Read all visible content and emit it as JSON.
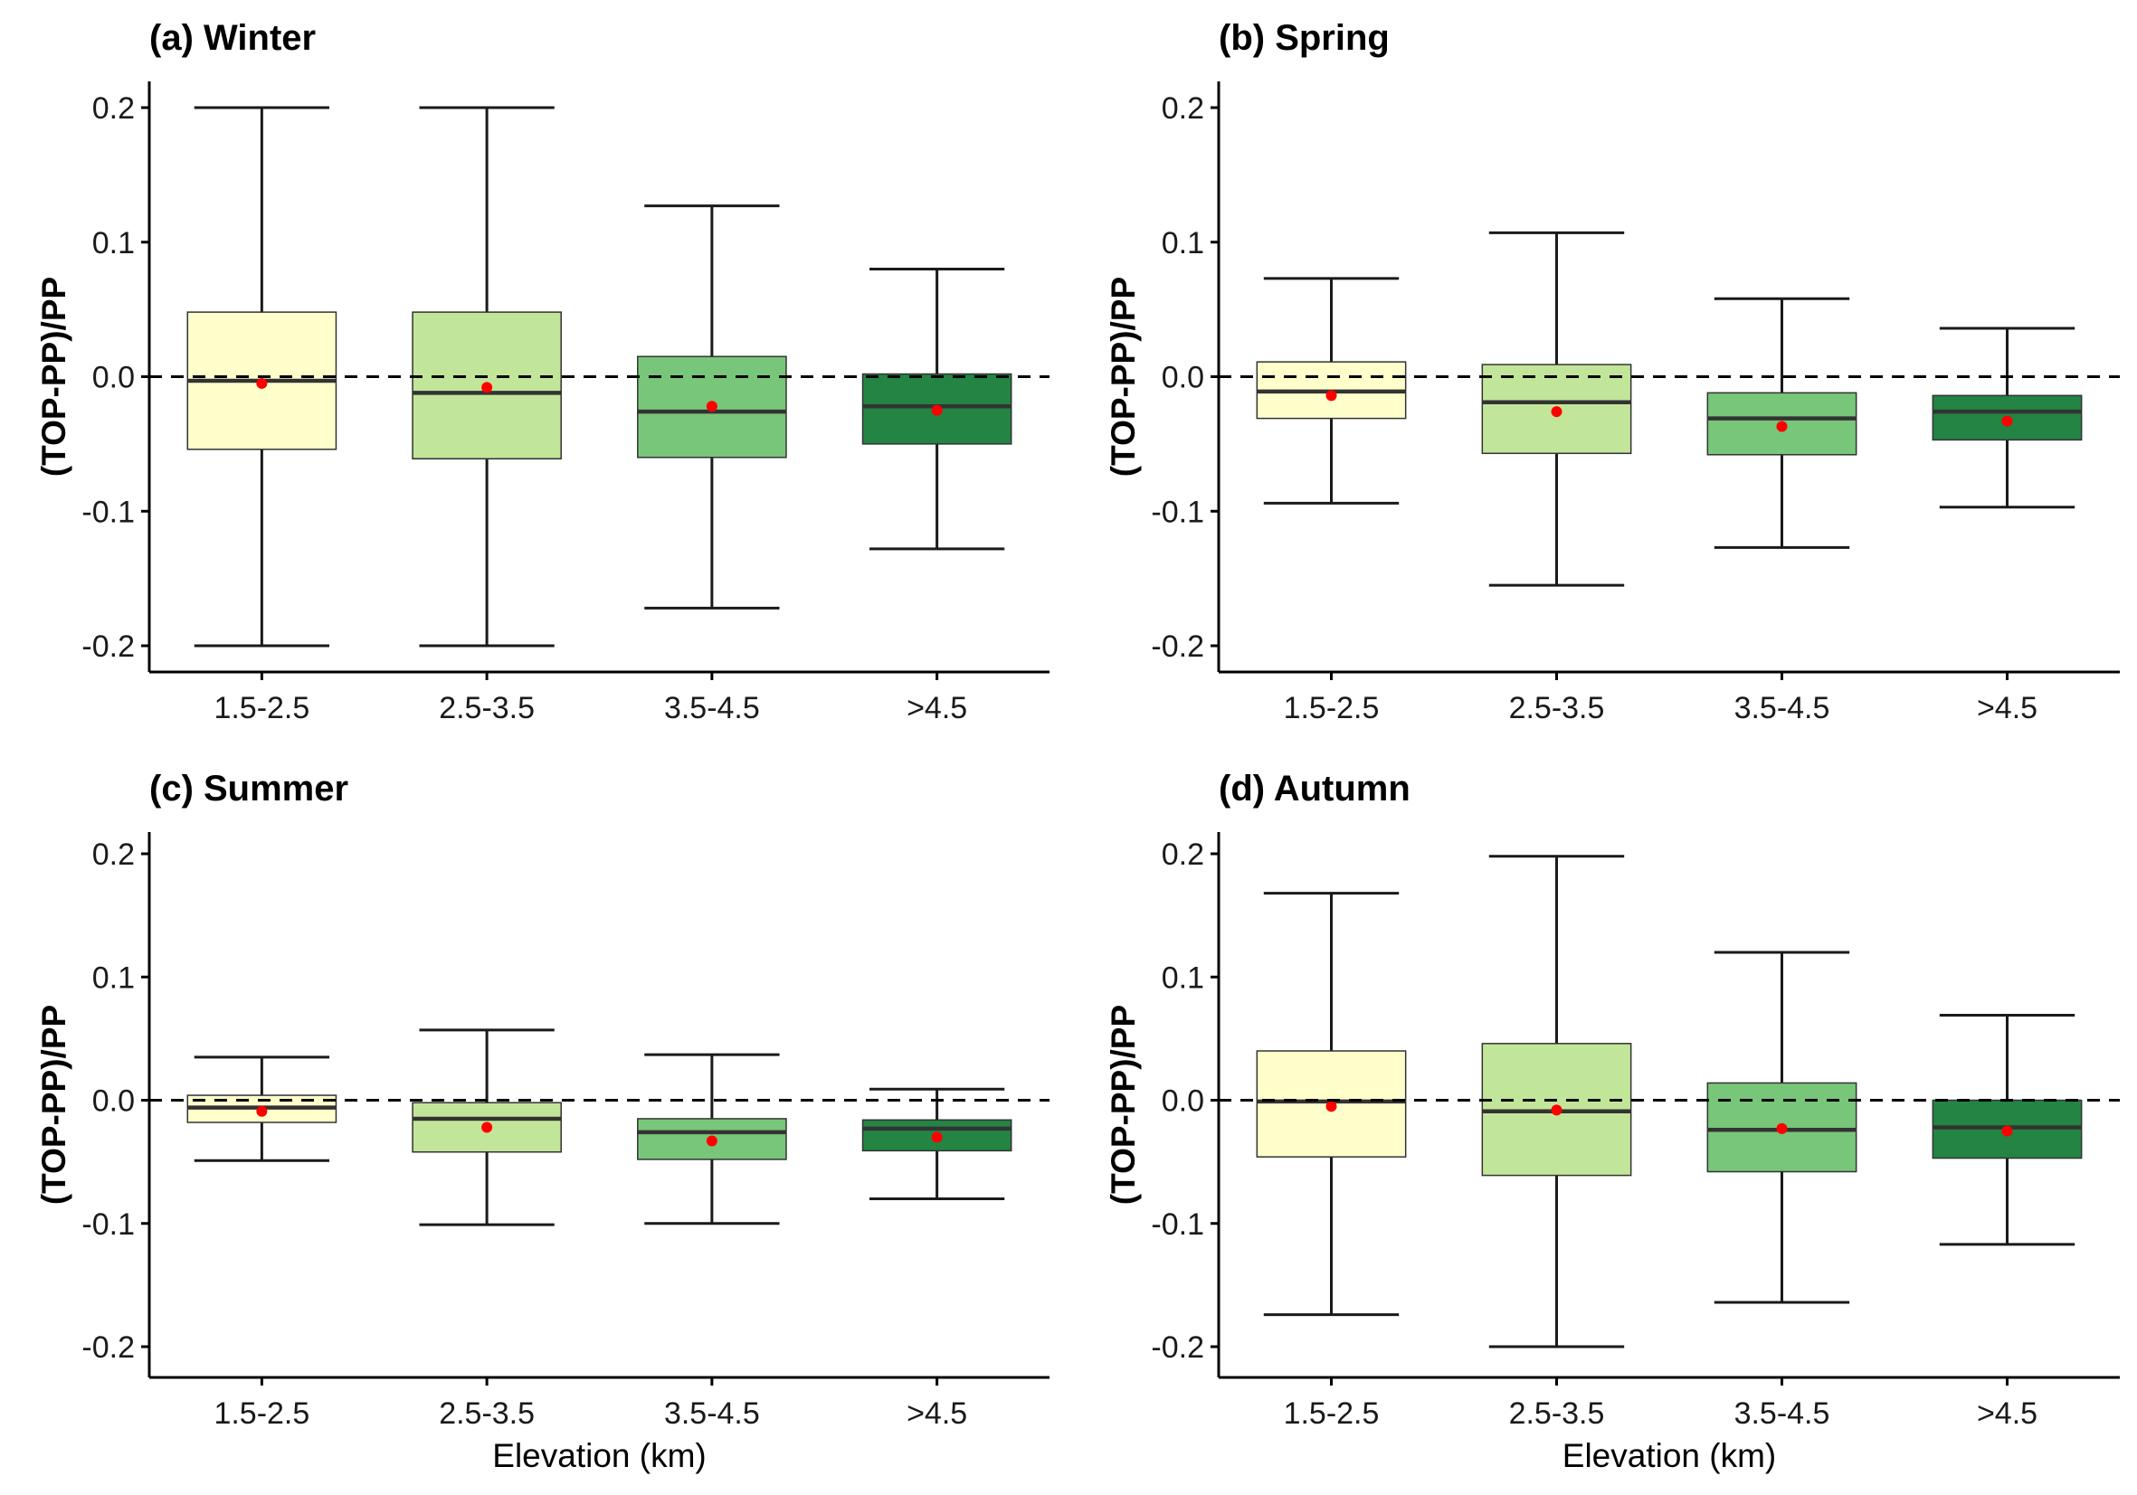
{
  "chart_data": [
    {
      "type": "box",
      "title": "(a) Winter",
      "ylabel": "(TOP-PP)/PP",
      "xlabel": "",
      "ylim": [
        -0.218,
        0.218
      ],
      "yticks": [
        "0.2",
        "0.1",
        "0.0",
        "-0.1",
        "-0.2"
      ],
      "reference_line": 0.0,
      "categories": [
        "1.5-2.5",
        "2.5-3.5",
        "3.5-4.5",
        ">4.5"
      ],
      "boxes": [
        {
          "whisker_low": -0.2,
          "q1": -0.054,
          "median": -0.003,
          "q3": 0.048,
          "whisker_high": 0.2,
          "mean": -0.005
        },
        {
          "whisker_low": -0.2,
          "q1": -0.061,
          "median": -0.012,
          "q3": 0.048,
          "whisker_high": 0.2,
          "mean": -0.008
        },
        {
          "whisker_low": -0.172,
          "q1": -0.06,
          "median": -0.026,
          "q3": 0.015,
          "whisker_high": 0.127,
          "mean": -0.022
        },
        {
          "whisker_low": -0.128,
          "q1": -0.05,
          "median": -0.022,
          "q3": 0.002,
          "whisker_high": 0.08,
          "mean": -0.025
        }
      ]
    },
    {
      "type": "box",
      "title": "(b) Spring",
      "ylabel": "(TOP-PP)/PP",
      "xlabel": "",
      "ylim": [
        -0.218,
        0.218
      ],
      "yticks": [
        "0.2",
        "0.1",
        "0.0",
        "-0.1",
        "-0.2"
      ],
      "reference_line": 0.0,
      "categories": [
        "1.5-2.5",
        "2.5-3.5",
        "3.5-4.5",
        ">4.5"
      ],
      "boxes": [
        {
          "whisker_low": -0.094,
          "q1": -0.031,
          "median": -0.011,
          "q3": 0.011,
          "whisker_high": 0.073,
          "mean": -0.014
        },
        {
          "whisker_low": -0.155,
          "q1": -0.057,
          "median": -0.019,
          "q3": 0.009,
          "whisker_high": 0.107,
          "mean": -0.026
        },
        {
          "whisker_low": -0.127,
          "q1": -0.058,
          "median": -0.031,
          "q3": -0.012,
          "whisker_high": 0.058,
          "mean": -0.037
        },
        {
          "whisker_low": -0.097,
          "q1": -0.047,
          "median": -0.026,
          "q3": -0.014,
          "whisker_high": 0.036,
          "mean": -0.033
        }
      ]
    },
    {
      "type": "box",
      "title": "(c) Summer",
      "ylabel": "(TOP-PP)/PP",
      "xlabel": "Elevation (km)",
      "ylim": [
        -0.218,
        0.218
      ],
      "yticks": [
        "0.2",
        "0.1",
        "0.0",
        "-0.1",
        "-0.2"
      ],
      "reference_line": 0.0,
      "categories": [
        "1.5-2.5",
        "2.5-3.5",
        "3.5-4.5",
        ">4.5"
      ],
      "boxes": [
        {
          "whisker_low": -0.049,
          "q1": -0.018,
          "median": -0.006,
          "q3": 0.004,
          "whisker_high": 0.035,
          "mean": -0.009
        },
        {
          "whisker_low": -0.101,
          "q1": -0.042,
          "median": -0.015,
          "q3": -0.002,
          "whisker_high": 0.057,
          "mean": -0.022
        },
        {
          "whisker_low": -0.1,
          "q1": -0.048,
          "median": -0.026,
          "q3": -0.015,
          "whisker_high": 0.037,
          "mean": -0.033
        },
        {
          "whisker_low": -0.08,
          "q1": -0.041,
          "median": -0.023,
          "q3": -0.016,
          "whisker_high": 0.009,
          "mean": -0.03
        }
      ]
    },
    {
      "type": "box",
      "title": "(d) Autumn",
      "ylabel": "(TOP-PP)/PP",
      "xlabel": "Elevation (km)",
      "ylim": [
        -0.218,
        0.218
      ],
      "yticks": [
        "0.2",
        "0.1",
        "0.0",
        "-0.1",
        "-0.2"
      ],
      "reference_line": 0.0,
      "categories": [
        "1.5-2.5",
        "2.5-3.5",
        "3.5-4.5",
        ">4.5"
      ],
      "boxes": [
        {
          "whisker_low": -0.174,
          "q1": -0.046,
          "median": -0.001,
          "q3": 0.04,
          "whisker_high": 0.168,
          "mean": -0.005
        },
        {
          "whisker_low": -0.2,
          "q1": -0.061,
          "median": -0.009,
          "q3": 0.046,
          "whisker_high": 0.198,
          "mean": -0.008
        },
        {
          "whisker_low": -0.164,
          "q1": -0.058,
          "median": -0.024,
          "q3": 0.014,
          "whisker_high": 0.12,
          "mean": -0.023
        },
        {
          "whisker_low": -0.117,
          "q1": -0.047,
          "median": -0.022,
          "q3": 0.0,
          "whisker_high": 0.069,
          "mean": -0.025
        }
      ]
    }
  ],
  "colors": {
    "box_fills": [
      "#ffffcc",
      "#c2e699",
      "#78c679",
      "#238443"
    ],
    "mean_point": "#ff0000",
    "median_line": "#333333",
    "reference_line": "#000000",
    "axis": "#000000"
  }
}
